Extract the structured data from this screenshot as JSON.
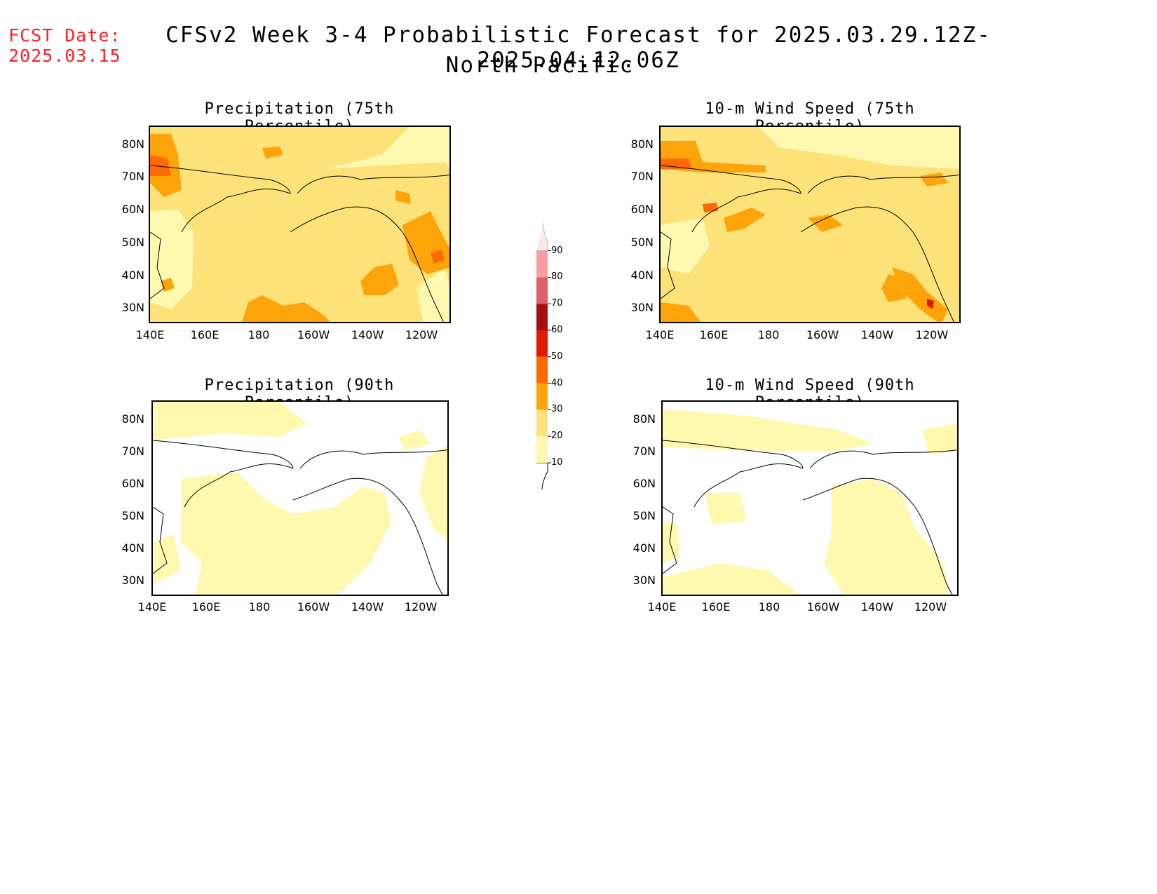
{
  "header": {
    "fcst_label": "FCST Date:",
    "fcst_date": "2025.03.15",
    "title": "CFSv2 Week 3-4 Probabilistic Forecast for 2025.03.29.12Z-2025.04.12.06Z",
    "region": "North Pacific"
  },
  "panels": [
    {
      "title": "Precipitation (75th Percentile)"
    },
    {
      "title": "10-m Wind Speed (75th Percentile)"
    },
    {
      "title": "Precipitation (90th Percentile)"
    },
    {
      "title": "10-m Wind Speed (90th Percentile)"
    }
  ],
  "axes": {
    "lat_labels": [
      "80N",
      "70N",
      "60N",
      "50N",
      "40N",
      "30N"
    ],
    "lon_labels": [
      "140E",
      "160E",
      "180",
      "160W",
      "140W",
      "120W"
    ]
  },
  "colorbar": {
    "levels": [
      "10",
      "20",
      "30",
      "40",
      "50",
      "60",
      "70",
      "80",
      "90"
    ],
    "colors": [
      "#fff9b0",
      "#fde27a",
      "#fda40a",
      "#ff6a00",
      "#e11a00",
      "#a50f0f",
      "#e0606a",
      "#f4a0a0",
      "#ffe4e8"
    ]
  }
}
